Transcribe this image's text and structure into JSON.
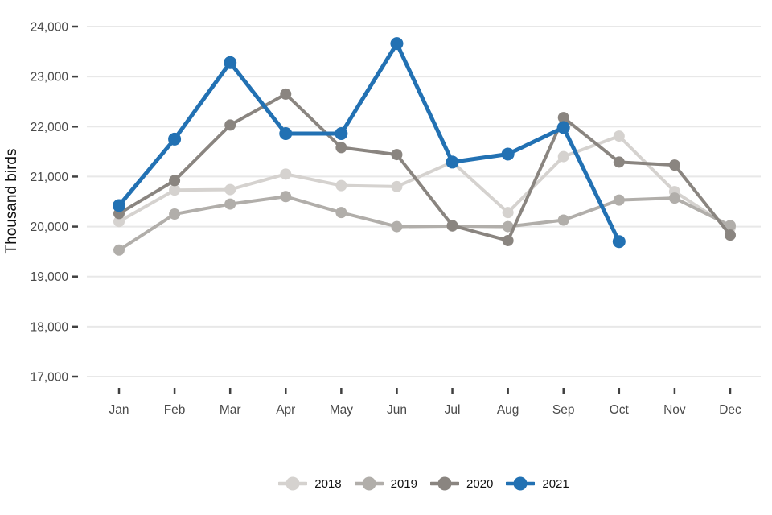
{
  "chart_data": {
    "type": "line",
    "title": "",
    "ylabel": "Thousand birds",
    "xlabel": "",
    "categories": [
      "Jan",
      "Feb",
      "Mar",
      "Apr",
      "May",
      "Jun",
      "Jul",
      "Aug",
      "Sep",
      "Oct",
      "Nov",
      "Dec"
    ],
    "ylim": [
      17000,
      24000
    ],
    "grid": true,
    "legend_position": "bottom",
    "yticks": [
      {
        "value": 24000,
        "label": "24,000"
      },
      {
        "value": 23000,
        "label": "23,000"
      },
      {
        "value": 22000,
        "label": "22,000"
      },
      {
        "value": 21000,
        "label": "21,000"
      },
      {
        "value": 20000,
        "label": "20,000"
      },
      {
        "value": 19000,
        "label": "19,000"
      },
      {
        "value": 18000,
        "label": "18,000"
      },
      {
        "value": 17000,
        "label": "17,000"
      }
    ],
    "series": [
      {
        "name": "2018",
        "color": "#d5d2cf",
        "values": [
          20100,
          20730,
          20740,
          21050,
          20820,
          20800,
          21290,
          20280,
          21400,
          21810,
          20700,
          19980
        ]
      },
      {
        "name": "2019",
        "color": "#b1aeaa",
        "values": [
          19530,
          20250,
          20450,
          20600,
          20280,
          20000,
          20010,
          20000,
          20130,
          20530,
          20570,
          20020
        ]
      },
      {
        "name": "2020",
        "color": "#8a8580",
        "values": [
          20260,
          20920,
          22030,
          22650,
          21580,
          21440,
          20020,
          19720,
          22180,
          21290,
          21230,
          19830
        ]
      },
      {
        "name": "2021",
        "color": "#2271b3",
        "values": [
          20420,
          21750,
          23280,
          21860,
          21860,
          23660,
          21290,
          21450,
          21980,
          19700,
          null,
          null
        ]
      }
    ],
    "style": {
      "gridline_color": "#e8e8e8",
      "tick_color": "#404040",
      "axis_label_color": "#4a4a4a",
      "title_color": "#0f0f0f"
    }
  }
}
